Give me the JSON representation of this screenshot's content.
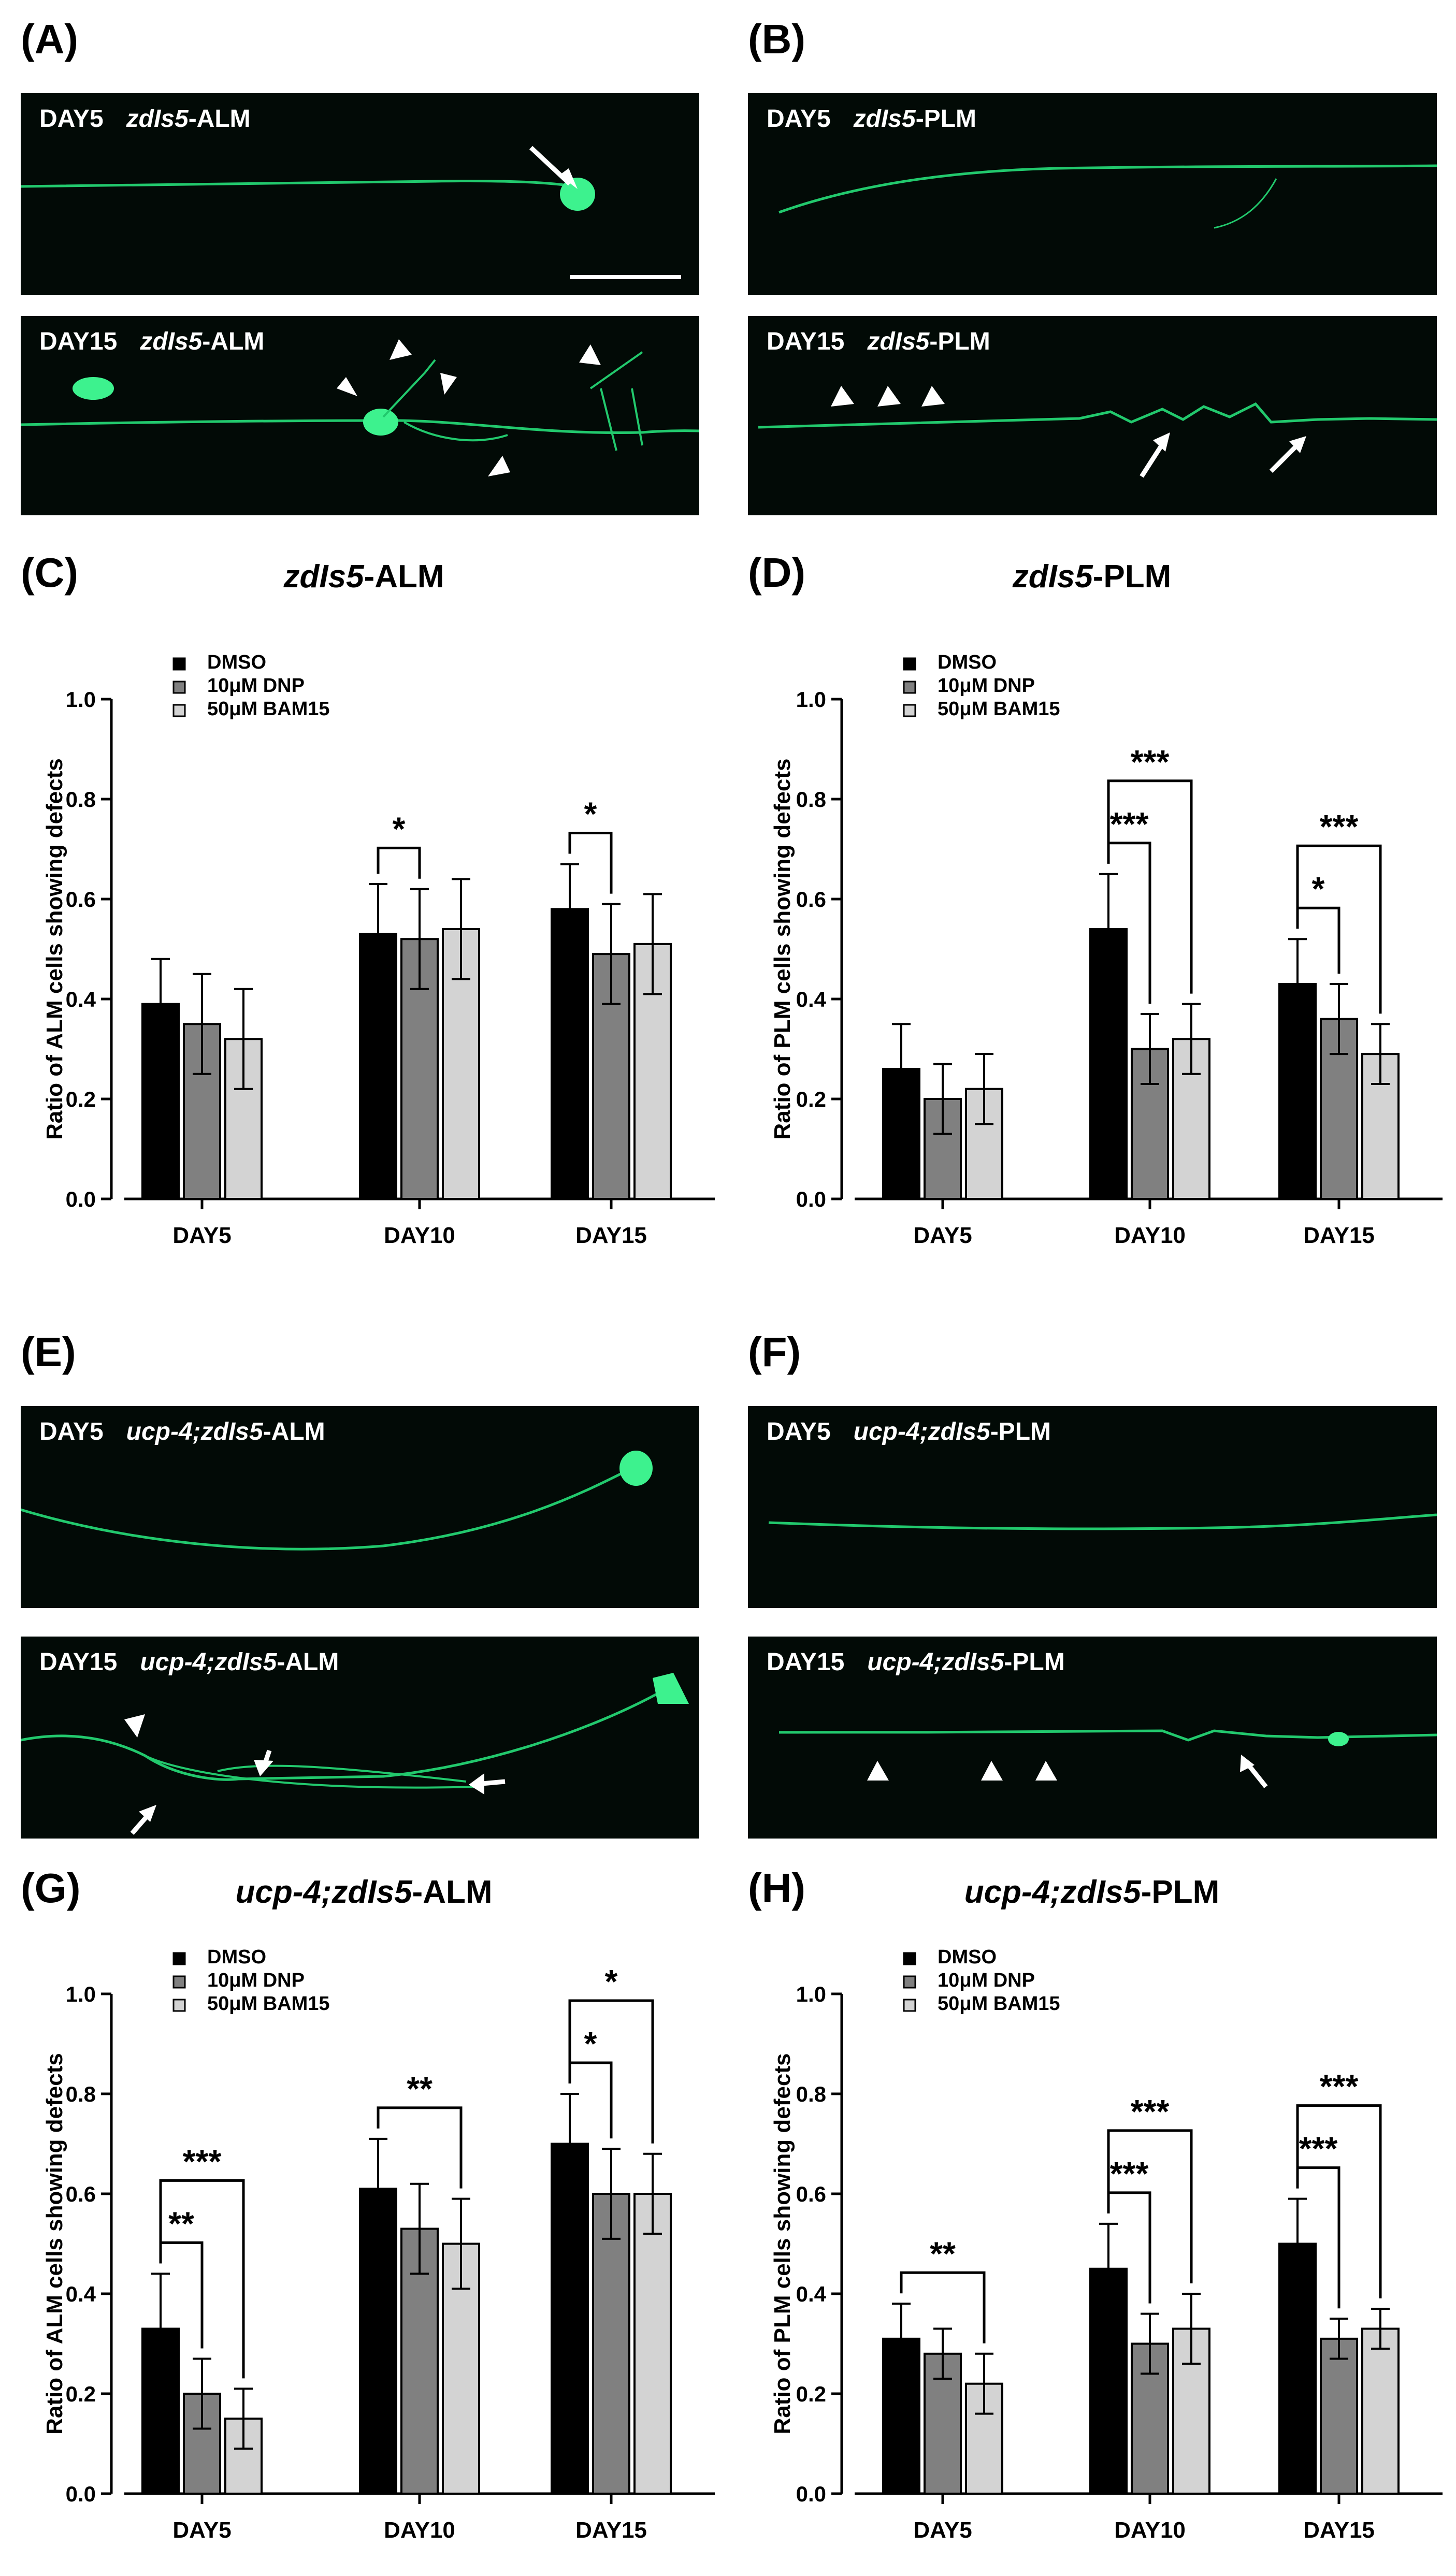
{
  "colors": {
    "dmso": "#000000",
    "dnp": "#808080",
    "bam15": "#d3d3d3",
    "neuron": "#29e07a"
  },
  "panels": {
    "A": {
      "label": "(A)",
      "top": {
        "day": "DAY5",
        "strain": "zdIs5",
        "cell": "-ALM"
      },
      "bottom": {
        "day": "DAY15",
        "strain": "zdIs5",
        "cell": "-ALM"
      }
    },
    "B": {
      "label": "(B)",
      "top": {
        "day": "DAY5",
        "strain": "zdIs5",
        "cell": "-PLM"
      },
      "bottom": {
        "day": "DAY15",
        "strain": "zdIs5",
        "cell": "-PLM"
      }
    },
    "E": {
      "label": "(E)",
      "top": {
        "day": "DAY5",
        "strain": "ucp-4;zdIs5",
        "cell": "-ALM"
      },
      "bottom": {
        "day": "DAY15",
        "strain": "ucp-4;zdIs5",
        "cell": "-ALM"
      }
    },
    "F": {
      "label": "(F)",
      "top": {
        "day": "DAY5",
        "strain": "ucp-4;zdIs5",
        "cell": "-PLM"
      },
      "bottom": {
        "day": "DAY15",
        "strain": "ucp-4;zdIs5",
        "cell": "-PLM"
      }
    }
  },
  "chart_data": [
    {
      "id": "C",
      "panel_label": "(C)",
      "type": "bar",
      "title_italic": "zdIs5",
      "title_rest": "-ALM",
      "ylabel": "Ratio of ALM cells showing defects",
      "xlabel": "",
      "ylim": [
        0,
        1.0
      ],
      "yticks": [
        "0.0",
        "0.2",
        "0.4",
        "0.6",
        "0.8",
        "1.0"
      ],
      "categories": [
        "DAY5",
        "DAY10",
        "DAY15"
      ],
      "series": [
        {
          "name": "DMSO",
          "values": [
            0.39,
            0.53,
            0.58
          ],
          "errors": [
            0.09,
            0.1,
            0.09
          ]
        },
        {
          "name": "10μM DNP",
          "values": [
            0.35,
            0.52,
            0.49
          ],
          "errors": [
            0.1,
            0.1,
            0.1
          ]
        },
        {
          "name": "50μM BAM15",
          "values": [
            0.32,
            0.54,
            0.51
          ],
          "errors": [
            0.1,
            0.1,
            0.1
          ]
        }
      ],
      "significance": [
        {
          "group": 1,
          "from": 0,
          "to": 1,
          "level": 0,
          "label": "*"
        },
        {
          "group": 2,
          "from": 0,
          "to": 1,
          "level": 0,
          "label": "*"
        }
      ],
      "legend_position": "top-left"
    },
    {
      "id": "D",
      "panel_label": "(D)",
      "type": "bar",
      "title_italic": "zdIs5",
      "title_rest": "-PLM",
      "ylabel": "Ratio of PLM cells showing defects",
      "xlabel": "",
      "ylim": [
        0,
        1.0
      ],
      "yticks": [
        "0.0",
        "0.2",
        "0.4",
        "0.6",
        "0.8",
        "1.0"
      ],
      "categories": [
        "DAY5",
        "DAY10",
        "DAY15"
      ],
      "series": [
        {
          "name": "DMSO",
          "values": [
            0.26,
            0.54,
            0.43
          ],
          "errors": [
            0.09,
            0.11,
            0.09
          ]
        },
        {
          "name": "10μM DNP",
          "values": [
            0.2,
            0.3,
            0.36
          ],
          "errors": [
            0.07,
            0.07,
            0.07
          ]
        },
        {
          "name": "50μM BAM15",
          "values": [
            0.22,
            0.32,
            0.29
          ],
          "errors": [
            0.07,
            0.07,
            0.06
          ]
        }
      ],
      "significance": [
        {
          "group": 1,
          "from": 0,
          "to": 1,
          "level": 0,
          "label": "***"
        },
        {
          "group": 1,
          "from": 0,
          "to": 2,
          "level": 1,
          "label": "***"
        },
        {
          "group": 2,
          "from": 0,
          "to": 1,
          "level": 0,
          "label": "*"
        },
        {
          "group": 2,
          "from": 0,
          "to": 2,
          "level": 1,
          "label": "***"
        }
      ],
      "legend_position": "top-left"
    },
    {
      "id": "G",
      "panel_label": "(G)",
      "type": "bar",
      "title_italic": "ucp-4;zdIs5",
      "title_rest": "-ALM",
      "ylabel": "Ratio of ALM cells showing defects",
      "xlabel": "",
      "ylim": [
        0,
        1.0
      ],
      "yticks": [
        "0.0",
        "0.2",
        "0.4",
        "0.6",
        "0.8",
        "1.0"
      ],
      "categories": [
        "DAY5",
        "DAY10",
        "DAY15"
      ],
      "series": [
        {
          "name": "DMSO",
          "values": [
            0.33,
            0.61,
            0.7
          ],
          "errors": [
            0.11,
            0.1,
            0.1
          ]
        },
        {
          "name": "10μM DNP",
          "values": [
            0.2,
            0.53,
            0.6
          ],
          "errors": [
            0.07,
            0.09,
            0.09
          ]
        },
        {
          "name": "50μM BAM15",
          "values": [
            0.15,
            0.5,
            0.6
          ],
          "errors": [
            0.06,
            0.09,
            0.08
          ]
        }
      ],
      "significance": [
        {
          "group": 0,
          "from": 0,
          "to": 1,
          "level": 0,
          "label": "**"
        },
        {
          "group": 0,
          "from": 0,
          "to": 2,
          "level": 1,
          "label": "***"
        },
        {
          "group": 1,
          "from": 0,
          "to": 2,
          "level": 0,
          "label": "**"
        },
        {
          "group": 2,
          "from": 0,
          "to": 1,
          "level": 0,
          "label": "*"
        },
        {
          "group": 2,
          "from": 0,
          "to": 2,
          "level": 1,
          "label": "*"
        }
      ],
      "legend_position": "top-left"
    },
    {
      "id": "H",
      "panel_label": "(H)",
      "type": "bar",
      "title_italic": "ucp-4;zdIs5",
      "title_rest": "-PLM",
      "ylabel": "Ratio of PLM cells showing defects",
      "xlabel": "",
      "ylim": [
        0,
        1.0
      ],
      "yticks": [
        "0.0",
        "0.2",
        "0.4",
        "0.6",
        "0.8",
        "1.0"
      ],
      "categories": [
        "DAY5",
        "DAY10",
        "DAY15"
      ],
      "series": [
        {
          "name": "DMSO",
          "values": [
            0.31,
            0.45,
            0.5
          ],
          "errors": [
            0.07,
            0.09,
            0.09
          ]
        },
        {
          "name": "10μM DNP",
          "values": [
            0.28,
            0.3,
            0.31
          ],
          "errors": [
            0.05,
            0.06,
            0.04
          ]
        },
        {
          "name": "50μM BAM15",
          "values": [
            0.22,
            0.33,
            0.33
          ],
          "errors": [
            0.06,
            0.07,
            0.04
          ]
        }
      ],
      "significance": [
        {
          "group": 0,
          "from": 0,
          "to": 2,
          "level": 0,
          "label": "**"
        },
        {
          "group": 1,
          "from": 0,
          "to": 1,
          "level": 0,
          "label": "***"
        },
        {
          "group": 1,
          "from": 0,
          "to": 2,
          "level": 1,
          "label": "***"
        },
        {
          "group": 2,
          "from": 0,
          "to": 1,
          "level": 0,
          "label": "***"
        },
        {
          "group": 2,
          "from": 0,
          "to": 2,
          "level": 1,
          "label": "***"
        }
      ],
      "legend_position": "top-left"
    }
  ]
}
